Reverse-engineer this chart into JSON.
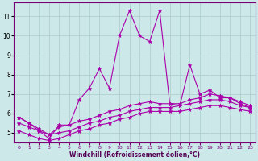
{
  "xlabel": "Windchill (Refroidissement éolien,°C)",
  "bg_color": "#cde8e8",
  "line_color": "#aa00aa",
  "grid_color": "#aacccc",
  "xlim": [
    -0.5,
    23.5
  ],
  "ylim": [
    4.5,
    11.7
  ],
  "yticks": [
    5,
    6,
    7,
    8,
    9,
    10,
    11
  ],
  "xticks": [
    0,
    1,
    2,
    3,
    4,
    5,
    6,
    7,
    8,
    9,
    10,
    11,
    12,
    13,
    14,
    15,
    16,
    17,
    18,
    19,
    20,
    21,
    22,
    23
  ],
  "series": [
    [
      5.8,
      5.5,
      5.1,
      4.7,
      5.4,
      5.4,
      6.7,
      7.3,
      8.3,
      7.3,
      10.0,
      11.3,
      10.0,
      9.7,
      11.3,
      6.5,
      6.4,
      8.5,
      7.0,
      7.2,
      6.8,
      6.8,
      6.5,
      6.3
    ],
    [
      5.8,
      5.5,
      5.2,
      4.9,
      5.3,
      5.4,
      5.6,
      5.7,
      5.9,
      6.1,
      6.2,
      6.4,
      6.5,
      6.6,
      6.5,
      6.5,
      6.5,
      6.7,
      6.8,
      7.0,
      6.9,
      6.8,
      6.6,
      6.4
    ],
    [
      5.5,
      5.3,
      5.1,
      4.9,
      5.0,
      5.1,
      5.3,
      5.5,
      5.6,
      5.8,
      5.9,
      6.1,
      6.2,
      6.3,
      6.3,
      6.3,
      6.4,
      6.5,
      6.6,
      6.7,
      6.7,
      6.6,
      6.4,
      6.3
    ],
    [
      5.1,
      4.9,
      4.7,
      4.6,
      4.7,
      4.9,
      5.1,
      5.2,
      5.4,
      5.5,
      5.7,
      5.8,
      6.0,
      6.1,
      6.1,
      6.1,
      6.1,
      6.2,
      6.3,
      6.4,
      6.4,
      6.3,
      6.2,
      6.1
    ]
  ]
}
